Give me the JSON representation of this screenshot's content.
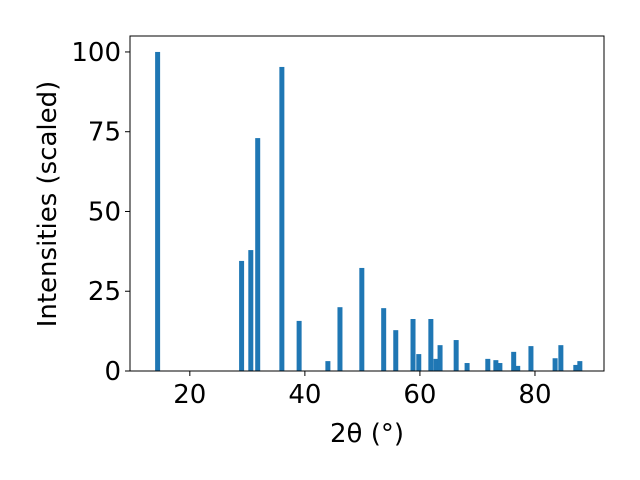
{
  "chart_data": {
    "type": "bar",
    "xlabel": "2θ (°)",
    "ylabel": "Intensities (scaled)",
    "x": [
      14.4,
      29.0,
      30.6,
      31.8,
      36.0,
      39.0,
      44.0,
      46.1,
      49.9,
      53.7,
      55.8,
      58.8,
      59.8,
      61.9,
      62.8,
      63.5,
      66.3,
      68.2,
      71.8,
      73.2,
      73.9,
      76.3,
      77.0,
      79.3,
      83.5,
      84.5,
      87.1,
      87.8
    ],
    "values": [
      100,
      34.5,
      37.9,
      73,
      95.3,
      15.7,
      3.1,
      20,
      32.3,
      19.7,
      12.8,
      16.3,
      5.3,
      16.3,
      3.8,
      8.1,
      9.7,
      2.5,
      3.8,
      3.4,
      2.5,
      6,
      1.6,
      7.8,
      4,
      8.1,
      1.9,
      3.1
    ],
    "color": "#1f77b4",
    "xlim": [
      9.6,
      92
    ],
    "ylim": [
      0,
      105
    ],
    "xticks": [
      20,
      40,
      60,
      80
    ],
    "yticks": [
      0,
      25,
      50,
      75,
      100
    ]
  }
}
